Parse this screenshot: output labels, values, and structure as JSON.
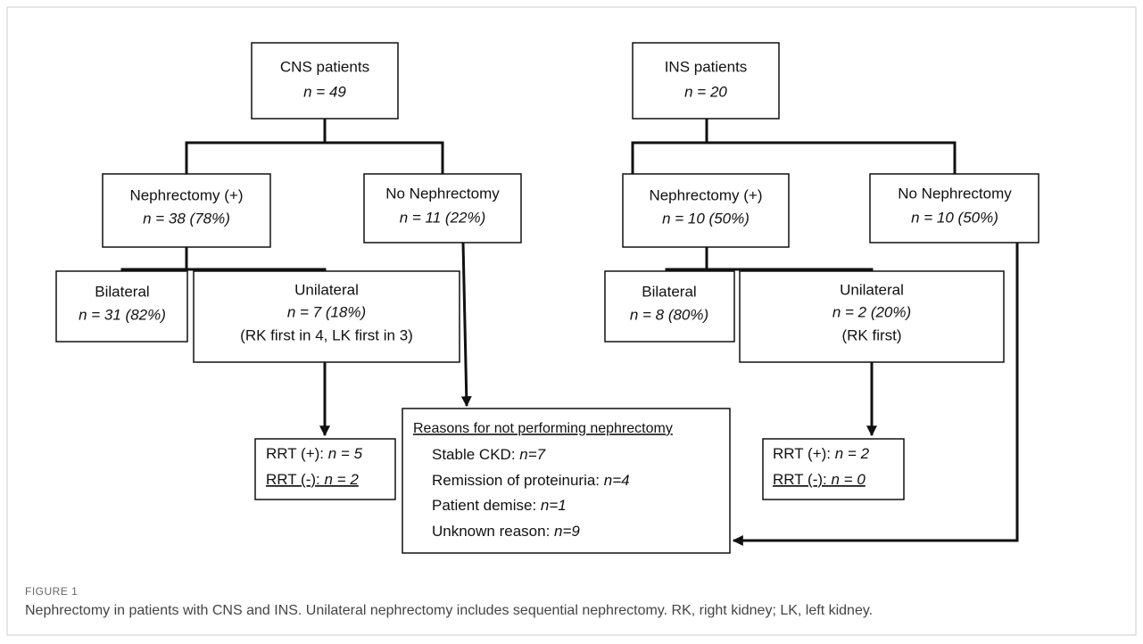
{
  "nodes": [
    {
      "title": "CNS patients",
      "count": "n = 49"
    },
    {
      "title": "INS patients",
      "count": "n = 20"
    },
    {
      "title": "Nephrectomy (+)",
      "count": "n = 38 (78%)"
    },
    {
      "title": "No Nephrectomy",
      "count": "n = 11 (22%)"
    },
    {
      "title": "Nephrectomy (+)",
      "count": "n = 10 (50%)"
    },
    {
      "title": "No Nephrectomy",
      "count": "n = 10 (50%)"
    },
    {
      "title": "Bilateral",
      "count": "n = 31 (82%)"
    },
    {
      "title": "Unilateral",
      "count": "n = 7 (18%)",
      "note": "(RK first in 4, LK first in 3)"
    },
    {
      "title": "Bilateral",
      "count": "n = 8 (80%)"
    },
    {
      "title": "Unilateral",
      "count": "n = 2 (20%)",
      "note": "(RK first)"
    },
    {
      "items": [
        {
          "label": "RRT (+): ",
          "value": "n = 5"
        },
        {
          "label": "RRT (-): ",
          "value": "n = 2"
        }
      ]
    },
    {
      "items": [
        {
          "label": "RRT (+): ",
          "value": "n = 2"
        },
        {
          "label": "RRT (-): ",
          "value": "n = 0"
        }
      ]
    },
    {
      "title": "Reasons for not performing nephrectomy",
      "items": [
        {
          "label": "Stable CKD: ",
          "value": "n=7"
        },
        {
          "label": "Remission of proteinuria: ",
          "value": "n=4"
        },
        {
          "label": "Patient demise: ",
          "value": "n=1"
        },
        {
          "label": "Unknown reason: ",
          "value": "n=9"
        }
      ]
    }
  ],
  "caption": {
    "label": "FIGURE 1",
    "text": "Nephrectomy in patients with CNS and INS. Unilateral nephrectomy includes sequential nephrectomy. RK, right kidney; LK, left kidney."
  }
}
